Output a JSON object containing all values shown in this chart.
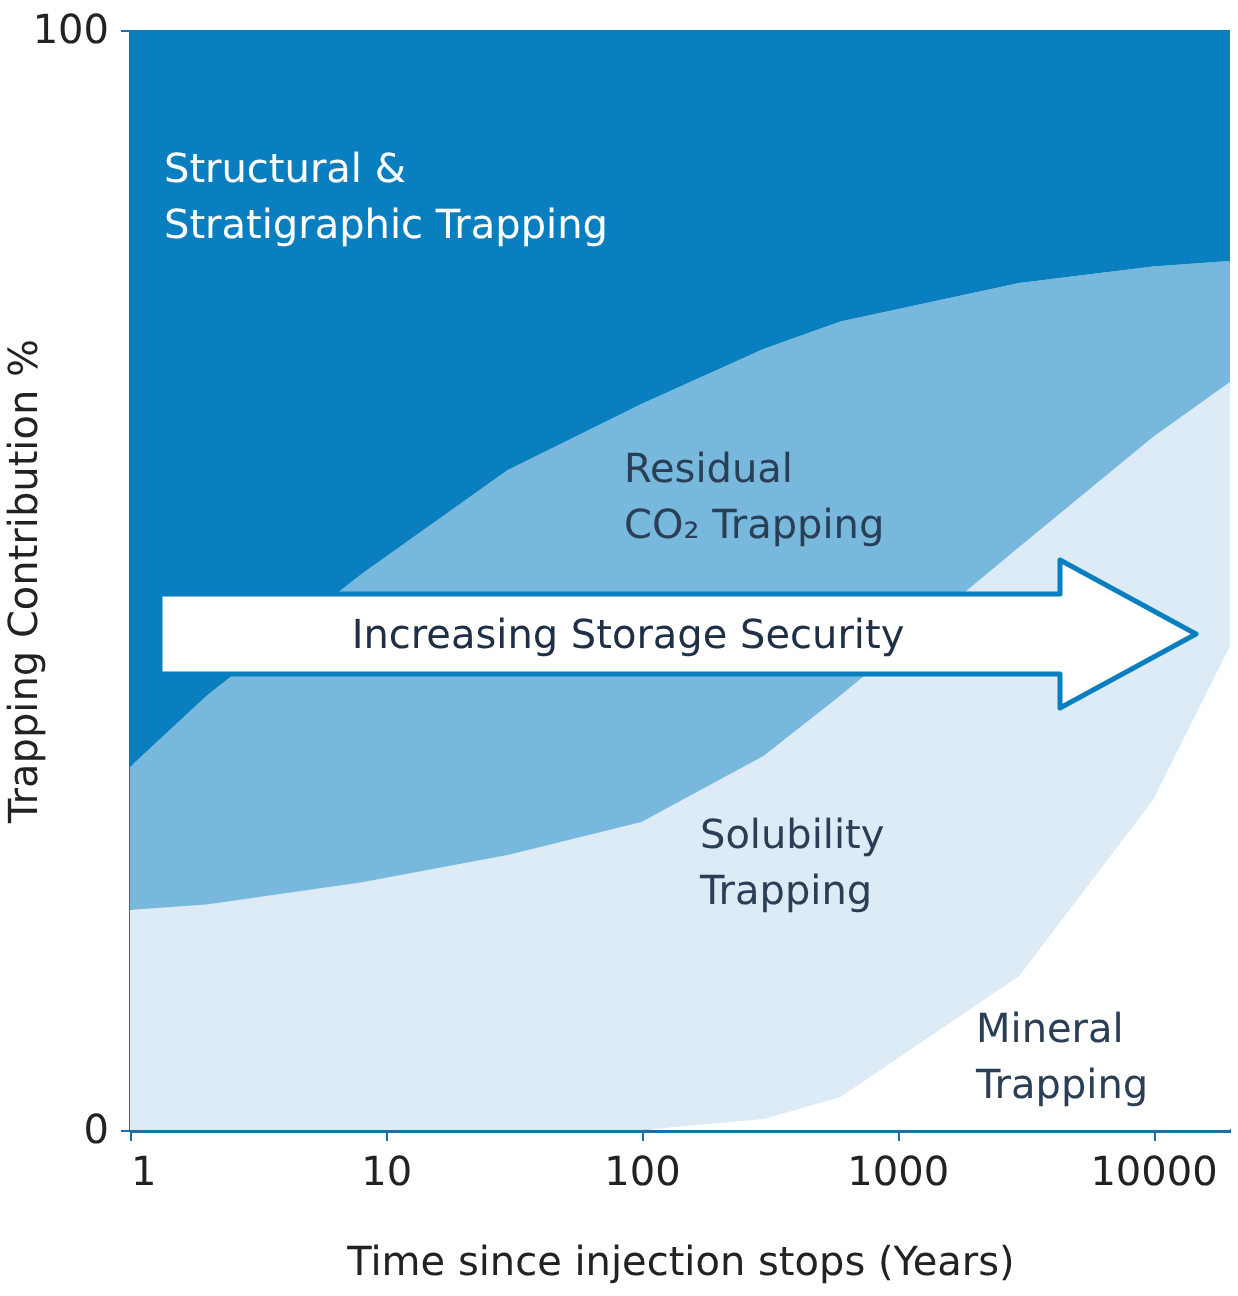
{
  "chart_data": {
    "type": "area",
    "stacked": true,
    "log": "x",
    "xlabel": "Time since injection stops (Years)",
    "ylabel": "Trapping Contribution %",
    "x": [
      1,
      2,
      8,
      30,
      100,
      300,
      600,
      3000,
      10000,
      20000
    ],
    "xlim": [
      1,
      20000
    ],
    "xticks": [
      1,
      10,
      100,
      1000,
      10000
    ],
    "ylim": [
      0,
      100
    ],
    "yticks": [
      0,
      100
    ],
    "grid": false,
    "series": [
      {
        "name": "Mineral Trapping",
        "color": "#ffffff",
        "values": [
          0,
          0,
          0,
          0,
          0,
          1,
          3,
          14,
          30,
          44
        ]
      },
      {
        "name": "Solubility Trapping",
        "color": "#dcebf5",
        "values": [
          20,
          20.5,
          22.5,
          25,
          28,
          33,
          36.5,
          39,
          33,
          24
        ]
      },
      {
        "name": "Residual CO₂ Trapping",
        "color": "#78b8dc",
        "values": [
          13,
          19,
          28,
          35,
          38,
          37,
          34,
          24,
          15.5,
          11
        ]
      },
      {
        "name": "Structural & Stratigraphic Trapping",
        "color": "#0a7fc0",
        "values": [
          67,
          60.5,
          49.5,
          40,
          34,
          29,
          26.5,
          23,
          21.5,
          21
        ]
      }
    ],
    "annotations": [
      "Increasing Storage Security"
    ]
  }
}
